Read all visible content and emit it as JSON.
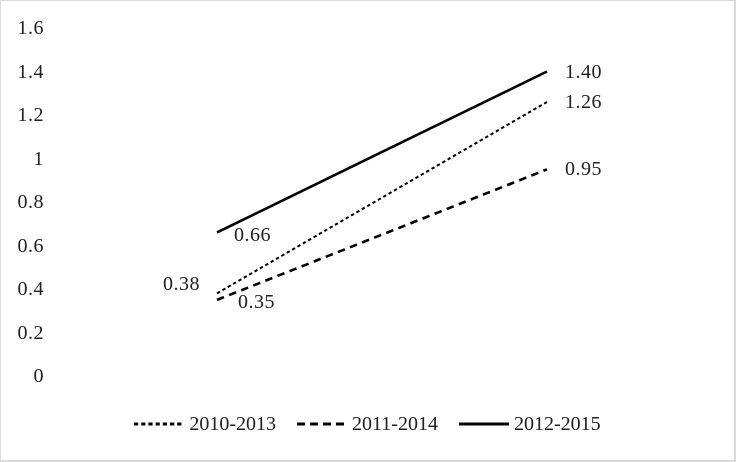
{
  "figure": {
    "background_color": "#ffffff",
    "border_color": "#d9d9d9",
    "text_color": "#1f1f1f",
    "line_color": "#000000"
  },
  "chart_data": {
    "type": "line",
    "title": "",
    "grid": false,
    "y_axis": {
      "min": 0,
      "max": 1.6,
      "step": 0.2,
      "ticks": [
        {
          "label": "1.6",
          "value": 1.6
        },
        {
          "label": "1.4",
          "value": 1.4
        },
        {
          "label": "1.2",
          "value": 1.2
        },
        {
          "label": "1",
          "value": 1
        },
        {
          "label": "0.8",
          "value": 0.8
        },
        {
          "label": "0.6",
          "value": 0.6
        },
        {
          "label": "0.4",
          "value": 0.4
        },
        {
          "label": "0.2",
          "value": 0.2
        },
        {
          "label": "0",
          "value": 0
        }
      ]
    },
    "series": [
      {
        "name": "2010-2013",
        "style": "dotted",
        "values": [
          0.38,
          1.26
        ],
        "point_labels": [
          "0.38",
          "1.26"
        ]
      },
      {
        "name": "2011-2014",
        "style": "dashed",
        "values": [
          0.35,
          0.95
        ],
        "point_labels": [
          "0.35",
          "0.95"
        ]
      },
      {
        "name": "2012-2015",
        "style": "solid",
        "values": [
          0.66,
          1.4
        ],
        "point_labels": [
          "0.66",
          "1.40"
        ]
      }
    ],
    "legend": {
      "position": "bottom",
      "entries": [
        "2010-2013",
        "2011-2014",
        "2012-2015"
      ]
    }
  }
}
